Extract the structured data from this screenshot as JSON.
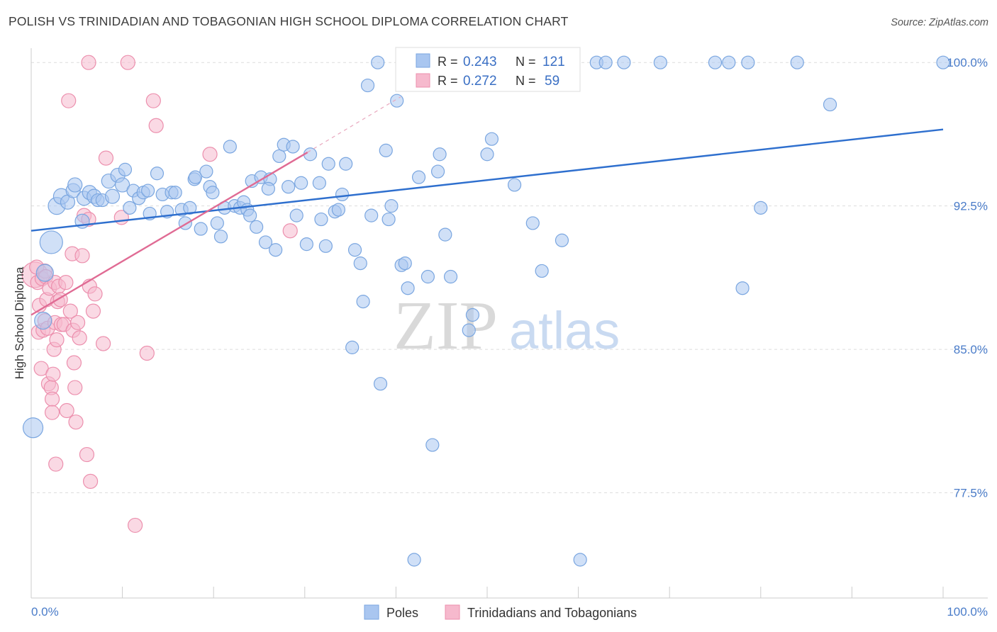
{
  "title": "POLISH VS TRINIDADIAN AND TOBAGONIAN HIGH SCHOOL DIPLOMA CORRELATION CHART",
  "source": "Source: ZipAtlas.com",
  "colors": {
    "poles_fill": "#a9c6f0",
    "poles_stroke": "#7aa6e0",
    "poles_line": "#2e6fce",
    "trin_fill": "#f6b9cd",
    "trin_stroke": "#ec8fad",
    "trin_line": "#e06b94",
    "tick_label": "#4a7cc9",
    "grid": "#dddddd"
  },
  "legend_top": {
    "rows": [
      {
        "r_label": "R =",
        "r_value": "0.243",
        "n_label": "N =",
        "n_value": "121"
      },
      {
        "r_label": "R =",
        "r_value": "0.272",
        "n_label": "N =",
        "n_value": "59"
      }
    ]
  },
  "chart_data": {
    "type": "scatter",
    "title": "POLISH VS TRINIDADIAN AND TOBAGONIAN HIGH SCHOOL DIPLOMA CORRELATION CHART",
    "xlabel": "",
    "ylabel": "High School Diploma",
    "xlim": [
      0,
      100
    ],
    "ylim": [
      72.0,
      100.6
    ],
    "x_tick_labels": [
      "0.0%",
      "100.0%"
    ],
    "y_ticks": [
      77.5,
      85.0,
      92.5,
      100.0
    ],
    "y_tick_labels": [
      "77.5%",
      "85.0%",
      "92.5%",
      "100.0%"
    ],
    "grid": "horizontal dashed",
    "legend_position": "bottom-center",
    "watermark": {
      "part1": "ZIP",
      "part2": "atlas"
    },
    "series": [
      {
        "name": "Poles",
        "r": 0.243,
        "n": 121,
        "trend": {
          "x0": 0,
          "y0": 91.2,
          "x1": 100,
          "y1": 96.5
        },
        "points": [
          [
            0.2,
            80.9,
            14
          ],
          [
            2.2,
            90.6,
            16
          ],
          [
            1.5,
            89.0,
            12
          ],
          [
            1.3,
            86.5,
            12
          ],
          [
            2.8,
            92.5,
            12
          ],
          [
            3.3,
            93.0,
            11
          ],
          [
            4.0,
            92.7,
            10
          ],
          [
            4.6,
            93.3,
            10
          ],
          [
            4.8,
            93.6,
            10
          ],
          [
            5.6,
            91.7,
            10
          ],
          [
            5.8,
            92.9,
            10
          ],
          [
            6.4,
            93.2,
            10
          ],
          [
            6.9,
            93.0,
            10
          ],
          [
            7.3,
            92.8,
            9
          ],
          [
            7.8,
            92.8,
            9
          ],
          [
            8.5,
            93.8,
            10
          ],
          [
            8.9,
            93.0,
            10
          ],
          [
            9.5,
            94.1,
            10
          ],
          [
            10.0,
            93.6,
            10
          ],
          [
            10.3,
            94.4,
            9
          ],
          [
            10.8,
            92.4,
            9
          ],
          [
            11.2,
            93.3,
            9
          ],
          [
            11.8,
            92.9,
            9
          ],
          [
            12.3,
            93.2,
            9
          ],
          [
            12.8,
            93.3,
            9
          ],
          [
            13.8,
            94.2,
            9
          ],
          [
            14.4,
            93.1,
            9
          ],
          [
            14.9,
            92.2,
            9
          ],
          [
            15.4,
            93.2,
            9
          ],
          [
            15.8,
            93.2,
            9
          ],
          [
            16.5,
            92.3,
            9
          ],
          [
            16.9,
            91.6,
            9
          ],
          [
            17.4,
            92.4,
            9
          ],
          [
            17.9,
            93.9,
            9
          ],
          [
            18.6,
            91.3,
            9
          ],
          [
            19.2,
            94.3,
            9
          ],
          [
            19.6,
            93.5,
            9
          ],
          [
            19.9,
            93.2,
            9
          ],
          [
            20.4,
            91.6,
            9
          ],
          [
            20.8,
            90.9,
            9
          ],
          [
            21.2,
            92.4,
            9
          ],
          [
            21.8,
            95.6,
            9
          ],
          [
            22.3,
            92.5,
            9
          ],
          [
            22.9,
            92.4,
            9
          ],
          [
            23.3,
            92.7,
            9
          ],
          [
            23.7,
            92.3,
            9
          ],
          [
            24.2,
            93.8,
            9
          ],
          [
            24.7,
            91.4,
            9
          ],
          [
            25.2,
            94.0,
            9
          ],
          [
            25.7,
            90.6,
            9
          ],
          [
            26.2,
            93.9,
            9
          ],
          [
            26.8,
            90.2,
            9
          ],
          [
            27.2,
            95.1,
            9
          ],
          [
            27.7,
            95.7,
            9
          ],
          [
            28.2,
            93.5,
            9
          ],
          [
            28.7,
            95.6,
            9
          ],
          [
            29.1,
            92.0,
            9
          ],
          [
            29.6,
            93.7,
            9
          ],
          [
            30.2,
            90.5,
            9
          ],
          [
            30.6,
            95.2,
            9
          ],
          [
            31.6,
            93.7,
            9
          ],
          [
            31.8,
            91.8,
            9
          ],
          [
            32.3,
            90.4,
            9
          ],
          [
            32.6,
            94.7,
            9
          ],
          [
            33.3,
            92.2,
            9
          ],
          [
            33.7,
            92.3,
            9
          ],
          [
            34.1,
            93.1,
            9
          ],
          [
            34.5,
            94.7,
            9
          ],
          [
            35.2,
            85.1,
            9
          ],
          [
            35.5,
            90.2,
            9
          ],
          [
            36.1,
            89.5,
            9
          ],
          [
            36.4,
            87.5,
            9
          ],
          [
            36.9,
            98.8,
            9
          ],
          [
            37.3,
            92.0,
            9
          ],
          [
            38.0,
            100.0,
            9
          ],
          [
            38.3,
            83.2,
            9
          ],
          [
            38.9,
            95.4,
            9
          ],
          [
            39.2,
            91.8,
            9
          ],
          [
            39.5,
            92.5,
            9
          ],
          [
            40.1,
            98.0,
            9
          ],
          [
            40.6,
            89.4,
            9
          ],
          [
            41.0,
            89.5,
            9
          ],
          [
            41.3,
            88.2,
            9
          ],
          [
            42.0,
            74.0,
            9
          ],
          [
            42.5,
            94.0,
            9
          ],
          [
            43.5,
            88.8,
            9
          ],
          [
            44.0,
            80.0,
            9
          ],
          [
            44.6,
            94.3,
            9
          ],
          [
            44.8,
            95.2,
            9
          ],
          [
            45.4,
            91.0,
            9
          ],
          [
            46.0,
            88.8,
            9
          ],
          [
            47.2,
            100.0,
            9
          ],
          [
            47.5,
            100.0,
            9
          ],
          [
            48.0,
            86.0,
            9
          ],
          [
            48.4,
            86.8,
            9
          ],
          [
            50.0,
            95.2,
            9
          ],
          [
            50.5,
            96.0,
            9
          ],
          [
            53.0,
            93.6,
            9
          ],
          [
            54.0,
            100.0,
            9
          ],
          [
            55.0,
            91.6,
            9
          ],
          [
            56.0,
            89.1,
            9
          ],
          [
            58.2,
            90.7,
            9
          ],
          [
            60.2,
            74.0,
            9
          ],
          [
            62.0,
            100.0,
            9
          ],
          [
            63.0,
            100.0,
            9
          ],
          [
            65.0,
            100.0,
            9
          ],
          [
            69.0,
            100.0,
            9
          ],
          [
            75.0,
            100.0,
            9
          ],
          [
            78.0,
            88.2,
            9
          ],
          [
            76.5,
            100.0,
            9
          ],
          [
            78.6,
            100.0,
            9
          ],
          [
            80.0,
            92.4,
            9
          ],
          [
            84.0,
            100.0,
            9
          ],
          [
            87.6,
            97.8,
            9
          ],
          [
            100.0,
            100.0,
            9
          ],
          [
            26.0,
            93.4,
            9
          ],
          [
            13.0,
            92.1,
            9
          ],
          [
            18.0,
            94.0,
            9
          ],
          [
            24.0,
            92.0,
            9
          ],
          [
            49.2,
            100.0,
            9
          ],
          [
            59.0,
            100.0,
            9
          ]
        ]
      },
      {
        "name": "Trinidadians and Tobagonians",
        "r": 0.272,
        "n": 59,
        "trend": {
          "x0": 0,
          "y0": 86.8,
          "x1": 30.3,
          "y1": 95.3
        },
        "trend_dashed": {
          "x0": 30.3,
          "y0": 95.3,
          "x1": 40.5,
          "y1": 98.2
        },
        "points": [
          [
            0.4,
            88.9,
            18
          ],
          [
            0.6,
            89.3,
            10
          ],
          [
            0.7,
            88.5,
            10
          ],
          [
            0.8,
            85.9,
            10
          ],
          [
            0.9,
            87.3,
            10
          ],
          [
            1.1,
            84.0,
            10
          ],
          [
            1.2,
            88.7,
            10
          ],
          [
            1.3,
            86.0,
            10
          ],
          [
            1.5,
            89.1,
            10
          ],
          [
            1.5,
            86.5,
            10
          ],
          [
            1.6,
            88.8,
            10
          ],
          [
            1.7,
            87.6,
            10
          ],
          [
            1.8,
            86.1,
            10
          ],
          [
            1.9,
            83.2,
            10
          ],
          [
            2.0,
            88.2,
            10
          ],
          [
            2.2,
            83.0,
            10
          ],
          [
            2.3,
            82.4,
            10
          ],
          [
            2.3,
            81.7,
            10
          ],
          [
            2.4,
            83.7,
            10
          ],
          [
            2.5,
            85.0,
            10
          ],
          [
            2.6,
            88.5,
            10
          ],
          [
            2.6,
            86.4,
            10
          ],
          [
            2.7,
            79.0,
            10
          ],
          [
            2.8,
            85.5,
            10
          ],
          [
            2.9,
            87.5,
            10
          ],
          [
            3.0,
            88.3,
            10
          ],
          [
            3.2,
            87.6,
            10
          ],
          [
            3.3,
            86.3,
            10
          ],
          [
            3.6,
            86.3,
            10
          ],
          [
            3.8,
            88.5,
            10
          ],
          [
            3.9,
            81.8,
            10
          ],
          [
            4.1,
            98.0,
            10
          ],
          [
            4.3,
            87.0,
            10
          ],
          [
            4.5,
            90.0,
            10
          ],
          [
            4.6,
            86.0,
            10
          ],
          [
            4.7,
            84.3,
            10
          ],
          [
            4.8,
            83.0,
            10
          ],
          [
            4.9,
            81.2,
            10
          ],
          [
            5.1,
            86.4,
            10
          ],
          [
            5.3,
            85.6,
            10
          ],
          [
            5.6,
            89.9,
            10
          ],
          [
            5.8,
            92.0,
            10
          ],
          [
            6.3,
            100.0,
            10
          ],
          [
            6.3,
            91.8,
            10
          ],
          [
            6.4,
            88.3,
            10
          ],
          [
            6.8,
            87.0,
            10
          ],
          [
            7.0,
            87.9,
            10
          ],
          [
            7.9,
            85.3,
            10
          ],
          [
            8.2,
            95.0,
            10
          ],
          [
            9.9,
            91.9,
            10
          ],
          [
            10.6,
            100.0,
            10
          ],
          [
            11.4,
            75.8,
            10
          ],
          [
            12.7,
            84.8,
            10
          ],
          [
            13.4,
            98.0,
            10
          ],
          [
            13.7,
            96.7,
            10
          ],
          [
            19.6,
            95.2,
            10
          ],
          [
            28.4,
            91.2,
            10
          ],
          [
            6.5,
            78.1,
            10
          ],
          [
            6.1,
            79.5,
            10
          ]
        ]
      }
    ]
  },
  "legend_bottom": {
    "items": [
      {
        "label": "Poles"
      },
      {
        "label": "Trinidadians and Tobagonians"
      }
    ]
  }
}
